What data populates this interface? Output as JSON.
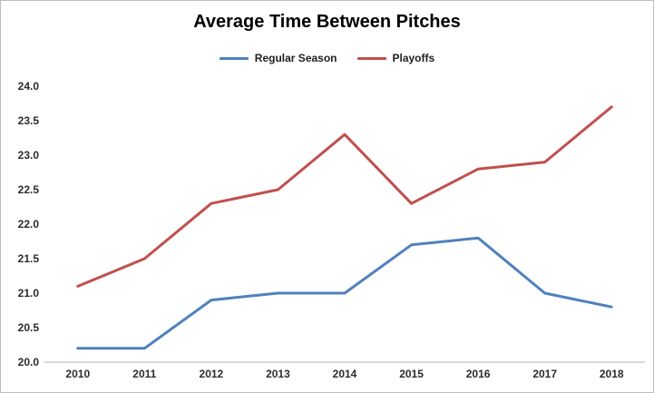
{
  "chart": {
    "frame_border_color": "#bdbdbd",
    "background_color": "#ffffff",
    "axis_line_color": "#b3b3b3"
  },
  "chart_data": {
    "type": "line",
    "title": "Average Time Between Pitches",
    "categories": [
      "2010",
      "2011",
      "2012",
      "2013",
      "2014",
      "2015",
      "2016",
      "2017",
      "2018"
    ],
    "series": [
      {
        "name": "Regular Season",
        "color": "#4F81BD",
        "values": [
          20.2,
          20.2,
          20.9,
          21.0,
          21.0,
          21.7,
          21.8,
          21.0,
          20.8
        ]
      },
      {
        "name": "Playoffs",
        "color": "#C0504D",
        "values": [
          21.1,
          21.5,
          22.3,
          22.5,
          23.3,
          22.3,
          22.8,
          22.9,
          23.7
        ]
      }
    ],
    "xlabel": "",
    "ylabel": "",
    "ylim": [
      20.0,
      24.0
    ],
    "ytick_step": 0.5,
    "ytick_decimals": 1,
    "grid": false,
    "legend_position": "top"
  }
}
